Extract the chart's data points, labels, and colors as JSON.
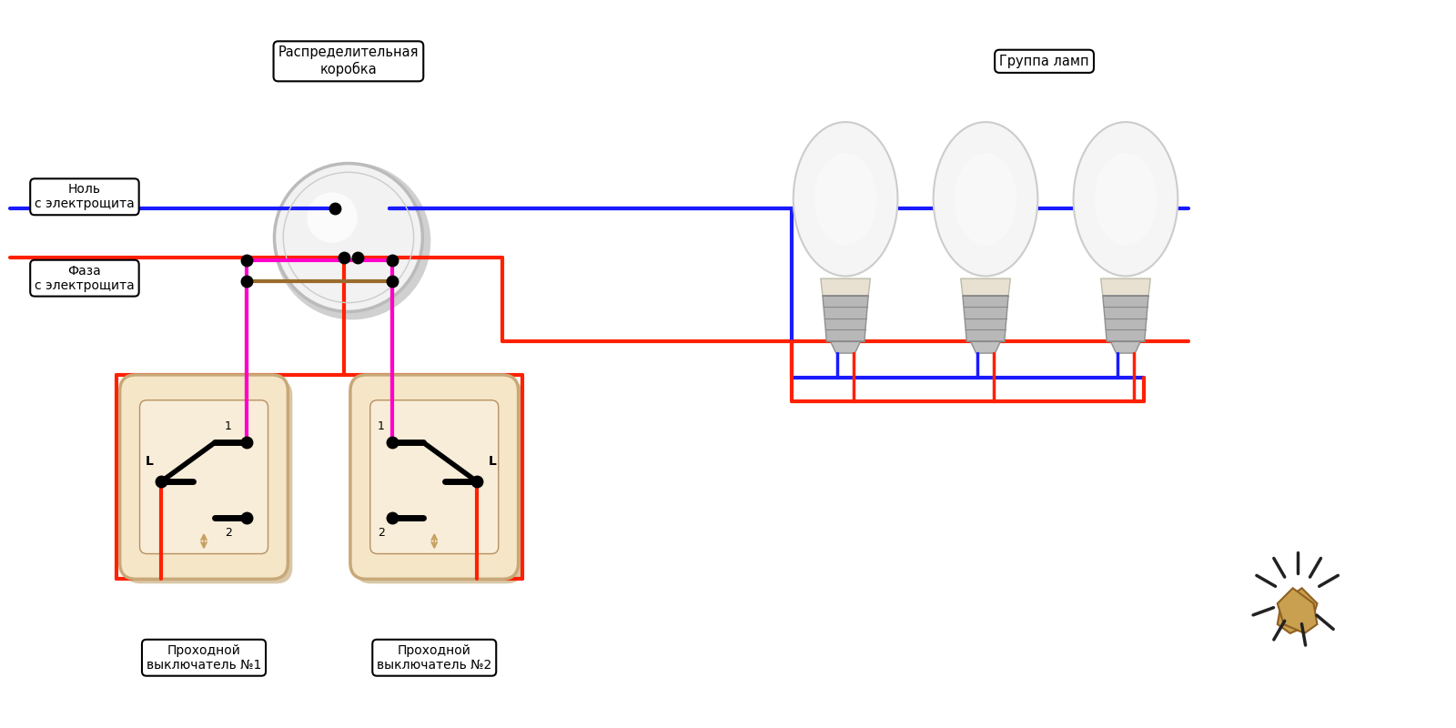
{
  "bg_color": "#ffffff",
  "wire_blue": "#1a1aff",
  "wire_red": "#ff2000",
  "wire_magenta": "#ff00cc",
  "wire_brown": "#9b6b2e",
  "dot_color": "#000000",
  "switch_fill": "#f5e6c8",
  "switch_edge": "#c8a878",
  "switch_inner_edge": "#b89060",
  "jbox_fill": "#e8e8e8",
  "jbox_edge": "#c0c0c0",
  "text_color": "#000000",
  "title_dist": "Распределительная\nкоробка",
  "title_lamps": "Группа ламп",
  "label_null": "Ноль\nс электрощита",
  "label_phase": "Фаза\nс электрощита",
  "label_sw1": "Проходной\nвыключатель №1",
  "label_sw2": "Проходной\nвыключатель №2",
  "figsize": [
    16,
    8
  ],
  "lw_wire": 3.0,
  "lw_wire_thin": 2.5
}
